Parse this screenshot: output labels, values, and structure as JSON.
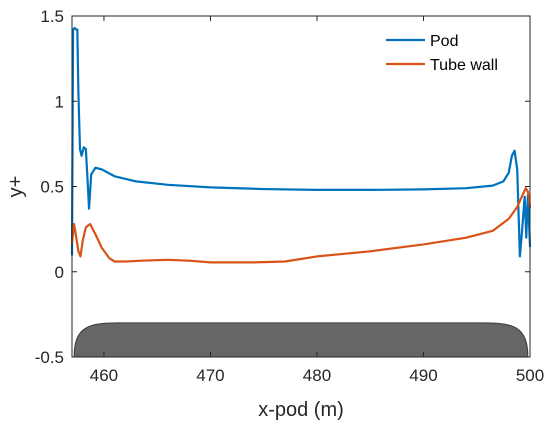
{
  "chart_data": {
    "type": "line",
    "title": "",
    "xlabel": "x-pod (m)",
    "ylabel": "y+",
    "xlim": [
      457,
      500
    ],
    "ylim": [
      -0.5,
      1.5
    ],
    "xticks": [
      "460",
      "470",
      "480",
      "490",
      "500"
    ],
    "yticks": [
      "-0.5",
      "0",
      "0.5",
      "1",
      "1.5"
    ],
    "xtick_values": [
      460,
      470,
      480,
      490,
      500
    ],
    "ytick_values": [
      -0.5,
      0,
      0.5,
      1,
      1.5
    ],
    "grid": false,
    "legend_position": "top-right",
    "series": [
      {
        "name": "Pod",
        "color": "#0072BD",
        "x": [
          457.0,
          457.1,
          457.25,
          457.4,
          457.5,
          457.6,
          457.75,
          457.9,
          458.1,
          458.3,
          458.45,
          458.6,
          458.8,
          459.2,
          459.8,
          461,
          463,
          466,
          470,
          475,
          480,
          485,
          490,
          494,
          496.5,
          497.5,
          498.0,
          498.3,
          498.55,
          498.8,
          499.05,
          499.2,
          499.35,
          499.5,
          499.65,
          499.8,
          500.0
        ],
        "y": [
          0.1,
          1.42,
          1.43,
          1.42,
          1.42,
          1.05,
          0.72,
          0.68,
          0.73,
          0.72,
          0.55,
          0.37,
          0.57,
          0.61,
          0.6,
          0.56,
          0.53,
          0.51,
          0.495,
          0.485,
          0.48,
          0.48,
          0.483,
          0.49,
          0.505,
          0.53,
          0.58,
          0.68,
          0.71,
          0.6,
          0.09,
          0.2,
          0.32,
          0.44,
          0.2,
          0.45,
          0.15
        ]
      },
      {
        "name": "Tube wall",
        "color": "#D95319",
        "x": [
          457.0,
          457.2,
          457.4,
          457.6,
          457.8,
          458.0,
          458.3,
          458.7,
          459.2,
          459.8,
          460.5,
          461,
          462,
          463.5,
          466,
          468,
          470,
          474,
          477,
          480,
          485,
          490,
          494,
          496.5,
          498,
          498.8,
          499.3,
          499.6,
          499.8,
          500.0
        ],
        "y": [
          0.17,
          0.28,
          0.2,
          0.12,
          0.09,
          0.18,
          0.26,
          0.28,
          0.22,
          0.14,
          0.08,
          0.06,
          0.06,
          0.065,
          0.07,
          0.065,
          0.055,
          0.055,
          0.06,
          0.09,
          0.12,
          0.16,
          0.2,
          0.24,
          0.31,
          0.38,
          0.45,
          0.49,
          0.47,
          0.38
        ]
      }
    ],
    "pod_silhouette": {
      "color": "#686664",
      "x_start": 457.2,
      "x_end": 499.8,
      "top_y": -0.3,
      "bottom_y": -0.5
    }
  }
}
